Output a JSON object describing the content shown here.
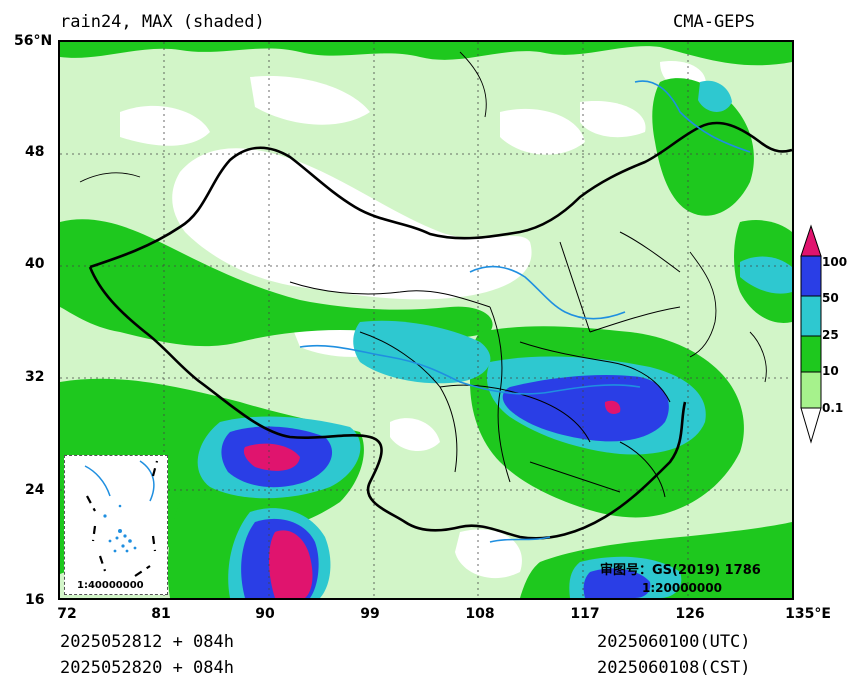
{
  "header": {
    "title": "rain24, MAX (shaded)",
    "model": "CMA-GEPS"
  },
  "map": {
    "lat_ticks": [
      "56°N",
      "48",
      "40",
      "32",
      "24",
      "16"
    ],
    "lon_ticks": [
      "72",
      "81",
      "90",
      "99",
      "108",
      "117",
      "126",
      "135°E"
    ],
    "approval_label": "审图号：GS(2019) 1786",
    "main_scale": "1:20000000",
    "inset_scale": "1:40000000"
  },
  "colorbar": {
    "labels": [
      "100",
      "50",
      "25",
      "10",
      "0.1"
    ],
    "colors": [
      "#e0146e",
      "#2a3ee6",
      "#2ec8d0",
      "#1ec81e",
      "#a6f28c"
    ]
  },
  "footer": {
    "init_utc": "2025052812 + 084h",
    "init_cst": "2025052820 + 084h",
    "valid_utc": "2025060100(UTC)",
    "valid_cst": "2025060108(CST)"
  }
}
